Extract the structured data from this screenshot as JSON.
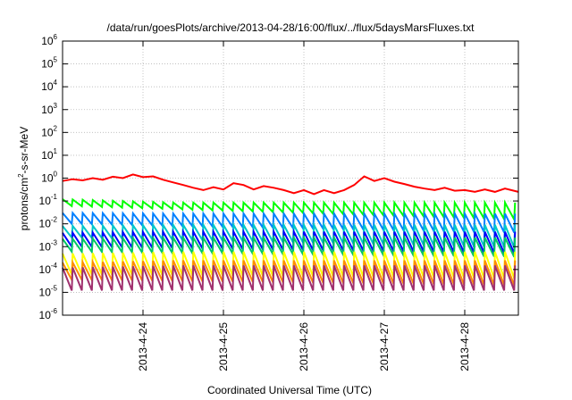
{
  "chart_data": {
    "type": "line",
    "title": "/data/run/goesPlots/archive/2013-04-28/16:00/flux/../flux/5daysMarsFluxes.txt",
    "xlabel": "Coordinated Universal Time (UTC)",
    "ylabel_parts": [
      "protons/cm",
      "2",
      "-s-sr-MeV"
    ],
    "yscale": "log",
    "ylim": [
      1e-06,
      1000000.0
    ],
    "xlim": [
      "2013-04-23 00:00",
      "2013-04-28 16:00"
    ],
    "grid": true,
    "x_ticks": [
      "2013-4-24",
      "2013-4-25",
      "2013-4-26",
      "2013-4-27",
      "2013-4-28"
    ],
    "y_ticks": [
      {
        "base": "10",
        "exp": "-6"
      },
      {
        "base": "10",
        "exp": "-5"
      },
      {
        "base": "10",
        "exp": "-4"
      },
      {
        "base": "10",
        "exp": "-3"
      },
      {
        "base": "10",
        "exp": "-2"
      },
      {
        "base": "10",
        "exp": "-1"
      },
      {
        "base": "10",
        "exp": "0"
      },
      {
        "base": "10",
        "exp": "1"
      },
      {
        "base": "10",
        "exp": "2"
      },
      {
        "base": "10",
        "exp": "3"
      },
      {
        "base": "10",
        "exp": "4"
      },
      {
        "base": "10",
        "exp": "5"
      },
      {
        "base": "10",
        "exp": "6"
      }
    ],
    "series": [
      {
        "color": "#ff0000",
        "points": [
          [
            "2013-04-23 00:00",
            0.75
          ],
          [
            "2013-04-23 03:00",
            0.9
          ],
          [
            "2013-04-23 06:00",
            0.8
          ],
          [
            "2013-04-23 09:00",
            1.0
          ],
          [
            "2013-04-23 12:00",
            0.85
          ],
          [
            "2013-04-23 15:00",
            1.15
          ],
          [
            "2013-04-23 18:00",
            1.0
          ],
          [
            "2013-04-23 21:00",
            1.45
          ],
          [
            "2013-04-24 00:00",
            1.1
          ],
          [
            "2013-04-24 03:00",
            1.2
          ],
          [
            "2013-04-24 06:00",
            0.85
          ],
          [
            "2013-04-24 09:00",
            0.65
          ],
          [
            "2013-04-24 12:00",
            0.5
          ],
          [
            "2013-04-24 15:00",
            0.38
          ],
          [
            "2013-04-24 18:00",
            0.3
          ],
          [
            "2013-04-24 21:00",
            0.4
          ],
          [
            "2013-04-25 00:00",
            0.32
          ],
          [
            "2013-04-25 03:00",
            0.6
          ],
          [
            "2013-04-25 06:00",
            0.5
          ],
          [
            "2013-04-25 09:00",
            0.32
          ],
          [
            "2013-04-25 12:00",
            0.45
          ],
          [
            "2013-04-25 15:00",
            0.38
          ],
          [
            "2013-04-25 18:00",
            0.3
          ],
          [
            "2013-04-25 21:00",
            0.22
          ],
          [
            "2013-04-26 00:00",
            0.3
          ],
          [
            "2013-04-26 03:00",
            0.2
          ],
          [
            "2013-04-26 06:00",
            0.3
          ],
          [
            "2013-04-26 09:00",
            0.22
          ],
          [
            "2013-04-26 12:00",
            0.3
          ],
          [
            "2013-04-26 15:00",
            0.5
          ],
          [
            "2013-04-26 18:00",
            1.2
          ],
          [
            "2013-04-26 21:00",
            0.75
          ],
          [
            "2013-04-27 00:00",
            1.0
          ],
          [
            "2013-04-27 03:00",
            0.7
          ],
          [
            "2013-04-27 06:00",
            0.55
          ],
          [
            "2013-04-27 09:00",
            0.42
          ],
          [
            "2013-04-27 12:00",
            0.35
          ],
          [
            "2013-04-27 15:00",
            0.3
          ],
          [
            "2013-04-27 18:00",
            0.38
          ],
          [
            "2013-04-27 21:00",
            0.28
          ],
          [
            "2013-04-28 00:00",
            0.3
          ],
          [
            "2013-04-28 03:00",
            0.25
          ],
          [
            "2013-04-28 06:00",
            0.32
          ],
          [
            "2013-04-28 09:00",
            0.25
          ],
          [
            "2013-04-28 12:00",
            0.35
          ],
          [
            "2013-04-28 16:00",
            0.25
          ]
        ]
      },
      {
        "color": "#00ff00",
        "low": 0.06,
        "high": 0.085,
        "first_high": 0.12,
        "last_low": 0.015
      },
      {
        "color": "#0080ff",
        "low": 0.01,
        "high": 0.028,
        "first_high": 0.03,
        "last_low": 0.004
      },
      {
        "color": "#00c8c8",
        "low": 0.0025,
        "high": 0.009,
        "first_high": 0.008,
        "last_low": 0.0009
      },
      {
        "color": "#0000ff",
        "low": 0.001,
        "high": 0.0045,
        "first_high": 0.004,
        "last_low": 0.0005
      },
      {
        "color": "#00c864",
        "low": 0.0006,
        "high": 0.0025,
        "first_high": 0.0022,
        "last_low": 0.00035
      },
      {
        "color": "#ffff00",
        "low": 6e-05,
        "high": 0.0006,
        "first_high": 0.0005,
        "last_low": 4e-05
      },
      {
        "color": "#ff8c00",
        "low": 3.5e-05,
        "high": 0.00025,
        "first_high": 0.0002,
        "last_low": 2e-05
      },
      {
        "color": "#a0306e",
        "low": 1.2e-05,
        "high": 0.00015,
        "first_high": 0.00012,
        "last_low": 1.2e-05
      }
    ],
    "cycle_hours": 3
  }
}
